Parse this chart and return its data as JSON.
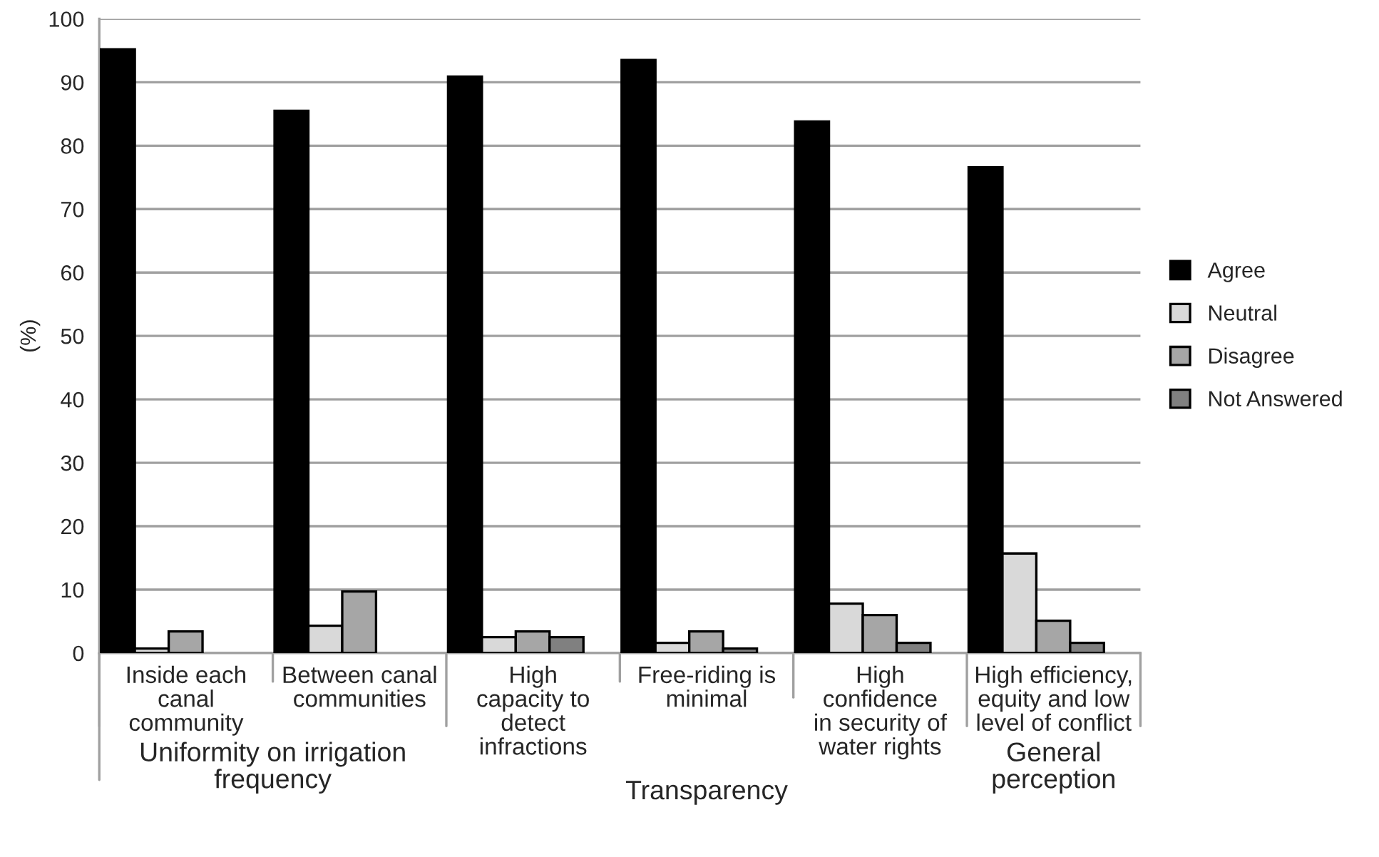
{
  "chart_data": {
    "type": "bar",
    "ylabel": "(%)",
    "categories": [
      "Inside each\ncanal\ncommunity",
      "Between canal\ncommunities",
      "High\ncapacity to\ndetect\ninfractions",
      "Free-riding is\nminimal",
      "High\nconfidence\nin security of\nwater rights",
      "High efficiency,\nequity and low\nlevel of conflict"
    ],
    "series": [
      {
        "name": "Agree",
        "color": "#000000",
        "values": [
          95.2,
          85.5,
          90.9,
          93.5,
          83.8,
          76.6
        ]
      },
      {
        "name": "Neutral",
        "color": "#d9d9d9",
        "values": [
          0.7,
          4.3,
          2.5,
          1.6,
          7.8,
          15.7
        ]
      },
      {
        "name": "Disagree",
        "color": "#a6a6a6",
        "values": [
          3.4,
          9.7,
          3.4,
          3.4,
          6.0,
          5.1
        ]
      },
      {
        "name": "Not Answered",
        "color": "#808080",
        "values": [
          null,
          null,
          2.5,
          0.7,
          1.6,
          1.6
        ]
      }
    ],
    "annotations": [
      "Uniformity on irrigation\nfrequency",
      "Transparency",
      "General\nperception"
    ],
    "ylim": [
      0,
      100
    ],
    "yticks": [
      0,
      10,
      20,
      30,
      40,
      50,
      60,
      70,
      80,
      90,
      100
    ],
    "grid": "y",
    "legend": "right"
  }
}
